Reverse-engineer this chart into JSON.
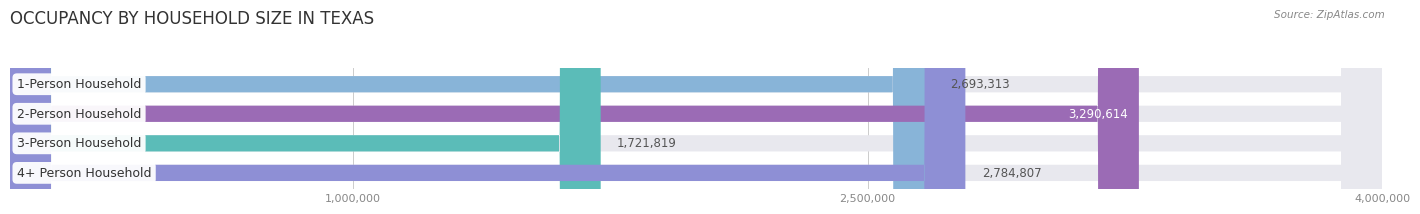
{
  "title": "OCCUPANCY BY HOUSEHOLD SIZE IN TEXAS",
  "source": "Source: ZipAtlas.com",
  "categories": [
    "1-Person Household",
    "2-Person Household",
    "3-Person Household",
    "4+ Person Household"
  ],
  "values": [
    2693313,
    3290614,
    1721819,
    2784807
  ],
  "bar_colors": [
    "#88b4d8",
    "#9b6bb5",
    "#5bbcb8",
    "#8e8fd5"
  ],
  "xlim_data": [
    0,
    4000000
  ],
  "xticks": [
    1000000,
    2500000,
    4000000
  ],
  "xtick_labels": [
    "1,000,000",
    "2,500,000",
    "4,000,000"
  ],
  "background_color": "#ffffff",
  "bar_background": "#e8e8ee",
  "bar_height": 0.55,
  "title_fontsize": 12,
  "label_fontsize": 9,
  "value_fontsize": 8.5,
  "tick_fontsize": 8
}
